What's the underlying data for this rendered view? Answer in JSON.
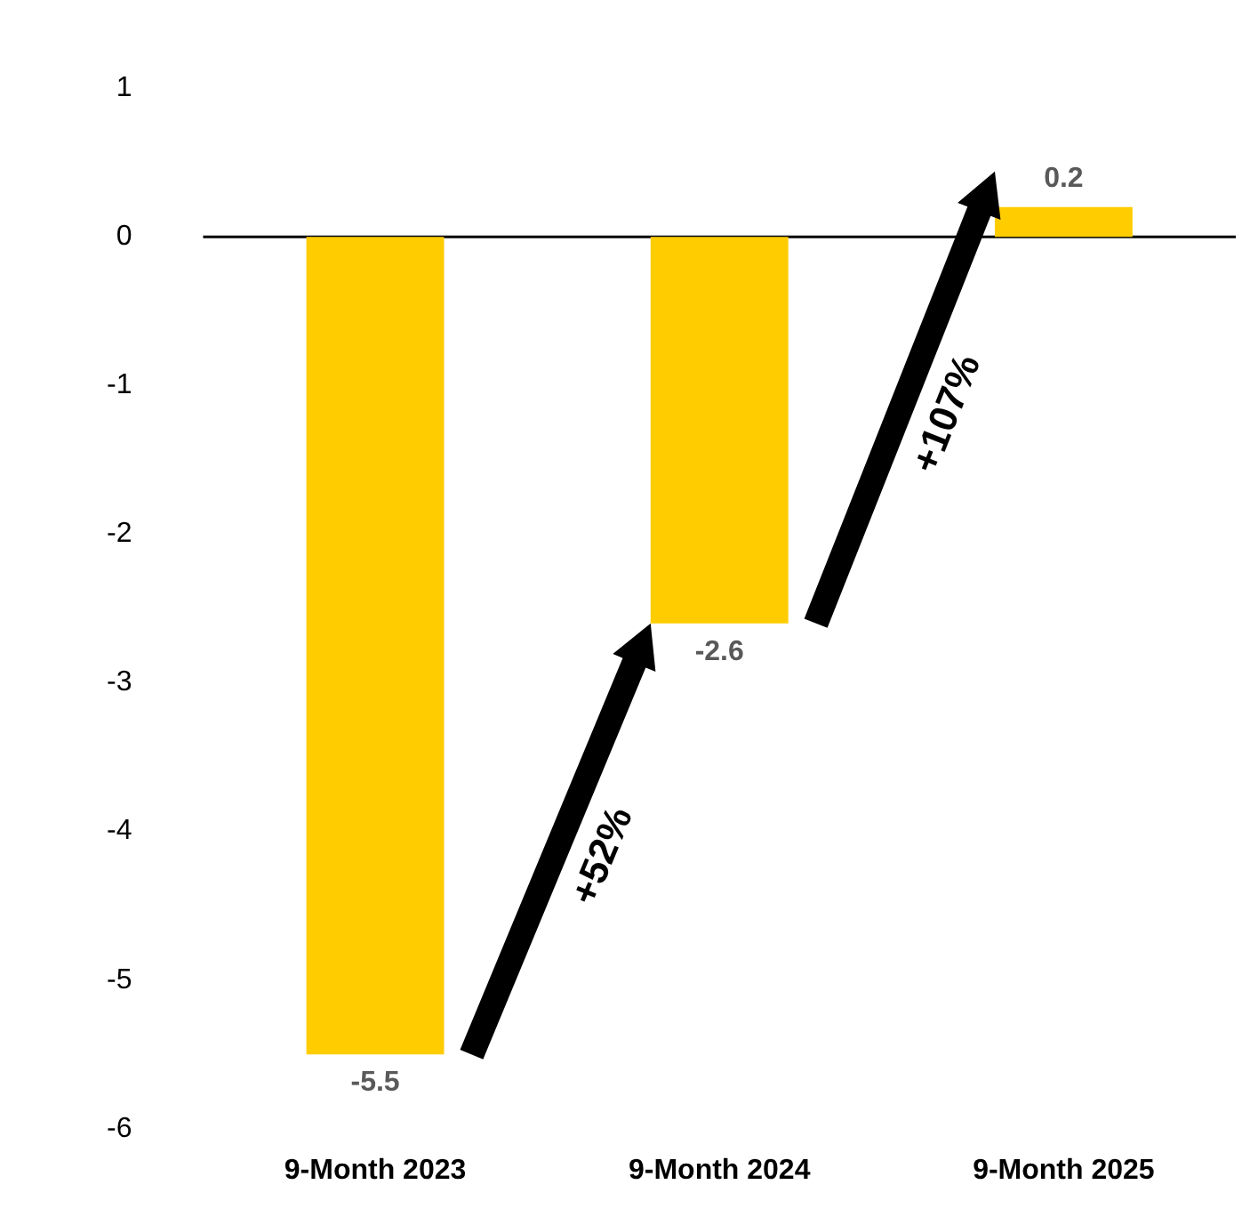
{
  "chart_data": {
    "type": "bar",
    "categories": [
      "9-Month 2023",
      "9-Month 2024",
      "9-Month 2025"
    ],
    "values": [
      -5.5,
      -2.6,
      0.2
    ],
    "color": "#ffcc00",
    "ylim": [
      -6,
      1
    ],
    "yticks": [
      -6,
      -5,
      -4,
      -3,
      -2,
      -1,
      0,
      1
    ],
    "grid": false,
    "legend": false,
    "data_labels": true,
    "annotations": [
      "+52%",
      "+107%"
    ],
    "ref_lines": [
      {
        "axis": "y",
        "value": 0,
        "color": "#000000"
      }
    ]
  }
}
